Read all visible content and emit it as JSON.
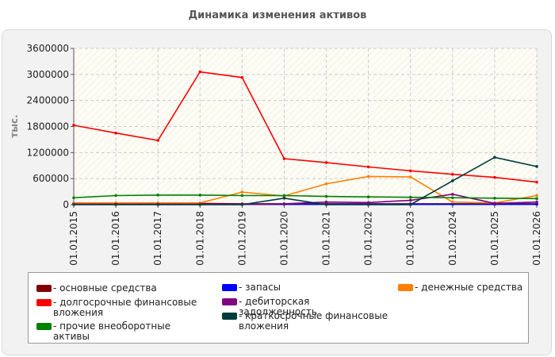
{
  "chart_data": {
    "type": "line",
    "title": "Динамика изменения активов",
    "ylabel": "тыс.",
    "xlabel": "",
    "ylim": [
      0,
      3600000
    ],
    "yticks": [
      0,
      600000,
      1200000,
      1800000,
      2400000,
      3000000,
      3600000
    ],
    "ytick_labels": [
      "0",
      "600000",
      "1200000",
      "1800000",
      "2400000",
      "3000000",
      "3600000"
    ],
    "categories": [
      "01.01.2015",
      "01.01.2016",
      "01.01.2017",
      "01.01.2018",
      "01.01.2019",
      "01.01.2020",
      "01.01.2021",
      "01.01.2022",
      "01.01.2023",
      "01.01.2024",
      "01.01.2025",
      "01.01.2026"
    ],
    "grid": true,
    "legend_position": "bottom",
    "series": [
      {
        "name": "- основные средства",
        "color": "#800000",
        "values": [
          30000,
          30000,
          30000,
          30000,
          20000,
          20000,
          20000,
          20000,
          20000,
          20000,
          20000,
          20000
        ]
      },
      {
        "name": "- запасы",
        "color": "#0000ff",
        "values": [
          10000,
          10000,
          10000,
          10000,
          10000,
          10000,
          10000,
          10000,
          10000,
          10000,
          10000,
          10000
        ]
      },
      {
        "name": "- денежные средства",
        "color": "#ff8000",
        "values": [
          40000,
          40000,
          40000,
          40000,
          290000,
          200000,
          480000,
          650000,
          640000,
          60000,
          40000,
          210000
        ]
      },
      {
        "name": "- долгосрочные финансовые вложения",
        "color": "#ff0000",
        "values": [
          1830000,
          1650000,
          1480000,
          3060000,
          2930000,
          1060000,
          970000,
          870000,
          780000,
          700000,
          630000,
          520000
        ]
      },
      {
        "name": "- дебиторская задолженность",
        "color": "#800080",
        "values": [
          10000,
          10000,
          10000,
          10000,
          10000,
          20000,
          60000,
          50000,
          100000,
          240000,
          30000,
          60000
        ]
      },
      {
        "name": "- прочие внеоборотные активы",
        "color": "#008000",
        "values": [
          160000,
          210000,
          220000,
          220000,
          210000,
          210000,
          190000,
          180000,
          170000,
          160000,
          150000,
          140000
        ]
      },
      {
        "name": "- краткосрочные финансовые вложения",
        "color": "#003c3c",
        "values": [
          0,
          0,
          0,
          0,
          0,
          150000,
          0,
          0,
          0,
          550000,
          1090000,
          880000
        ]
      }
    ]
  }
}
